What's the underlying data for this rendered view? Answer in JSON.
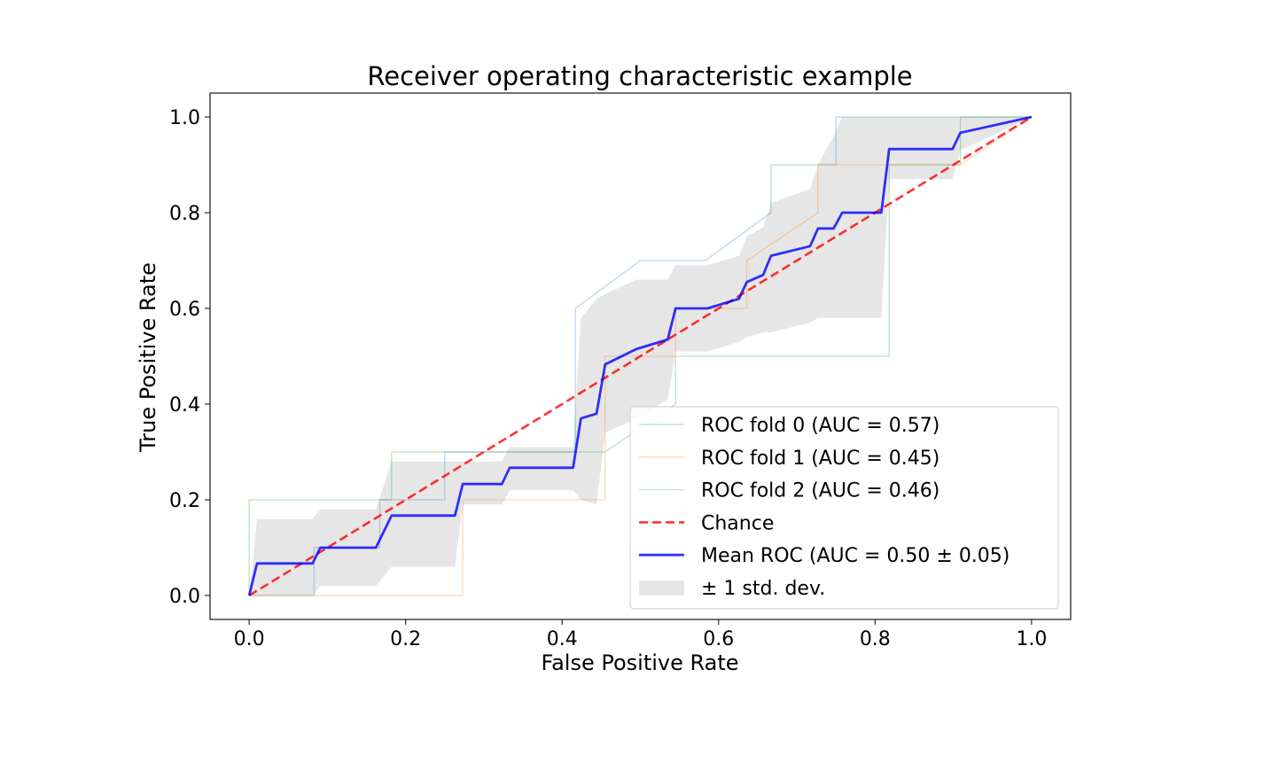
{
  "chart_data": {
    "type": "line",
    "title": "Receiver operating characteristic example",
    "xlabel": "False Positive Rate",
    "ylabel": "True Positive Rate",
    "xlim": [
      -0.05,
      1.05
    ],
    "ylim": [
      -0.05,
      1.05
    ],
    "xticks": [
      0.0,
      0.2,
      0.4,
      0.6,
      0.8,
      1.0
    ],
    "xtick_labels": [
      "0.0",
      "0.2",
      "0.4",
      "0.6",
      "0.8",
      "1.0"
    ],
    "yticks": [
      0.0,
      0.2,
      0.4,
      0.6,
      0.8,
      1.0
    ],
    "ytick_labels": [
      "0.0",
      "0.2",
      "0.4",
      "0.6",
      "0.8",
      "1.0"
    ],
    "grid": false,
    "legend": "lower right",
    "series": [
      {
        "name": "ROC fold 0 (AUC = 0.57)",
        "color": "#1f77b4",
        "x": [
          0.0,
          0.0,
          0.083,
          0.083,
          0.167,
          0.167,
          0.25,
          0.25,
          0.333,
          0.333,
          0.417,
          0.417,
          0.5,
          0.583,
          0.667,
          0.667,
          0.75,
          0.75,
          1.0
        ],
        "y": [
          0.0,
          0.0,
          0.0,
          0.1,
          0.1,
          0.2,
          0.2,
          0.3,
          0.3,
          0.3,
          0.3,
          0.6,
          0.7,
          0.7,
          0.8,
          0.9,
          0.9,
          1.0,
          1.0
        ]
      },
      {
        "name": "ROC fold 1 (AUC = 0.45)",
        "color": "#ff7f0e",
        "x": [
          0.0,
          0.273,
          0.273,
          0.455,
          0.455,
          0.545,
          0.545,
          0.636,
          0.636,
          0.727,
          0.727,
          0.909,
          1.0
        ],
        "y": [
          0.0,
          0.0,
          0.2,
          0.2,
          0.5,
          0.5,
          0.6,
          0.6,
          0.7,
          0.8,
          0.9,
          0.9,
          1.0
        ]
      },
      {
        "name": "ROC fold 2 (AUC = 0.46)",
        "color": "#2ca02c",
        "x": [
          0.0,
          0.0,
          0.182,
          0.182,
          0.455,
          0.545,
          0.545,
          0.818,
          0.818,
          0.909,
          0.909,
          1.0
        ],
        "y": [
          0.0,
          0.2,
          0.2,
          0.3,
          0.3,
          0.4,
          0.5,
          0.5,
          0.9,
          0.9,
          1.0,
          1.0
        ]
      },
      {
        "name": "Chance",
        "color": "#ff0000",
        "dashed": true,
        "x": [
          0.0,
          1.0
        ],
        "y": [
          0.0,
          1.0
        ]
      },
      {
        "name": "Mean ROC (AUC = 0.50 ± 0.05)",
        "color": "#0000ff",
        "x": [
          0.0,
          0.01,
          0.081,
          0.091,
          0.162,
          0.182,
          0.263,
          0.273,
          0.323,
          0.333,
          0.414,
          0.424,
          0.444,
          0.455,
          0.495,
          0.515,
          0.535,
          0.545,
          0.586,
          0.626,
          0.636,
          0.657,
          0.667,
          0.717,
          0.727,
          0.747,
          0.758,
          0.808,
          0.818,
          0.899,
          0.909,
          1.0
        ],
        "y": [
          0.0,
          0.067,
          0.067,
          0.1,
          0.1,
          0.167,
          0.167,
          0.233,
          0.233,
          0.267,
          0.267,
          0.37,
          0.38,
          0.483,
          0.515,
          0.525,
          0.535,
          0.6,
          0.6,
          0.62,
          0.655,
          0.67,
          0.71,
          0.73,
          0.767,
          0.767,
          0.8,
          0.8,
          0.933,
          0.933,
          0.967,
          1.0
        ]
      },
      {
        "name": "± 1 std. dev.",
        "color": "#808080",
        "band": true,
        "x": [
          0.0,
          0.01,
          0.081,
          0.091,
          0.162,
          0.182,
          0.263,
          0.273,
          0.323,
          0.333,
          0.414,
          0.424,
          0.444,
          0.455,
          0.495,
          0.515,
          0.535,
          0.545,
          0.586,
          0.626,
          0.636,
          0.657,
          0.667,
          0.717,
          0.727,
          0.747,
          0.758,
          0.808,
          0.818,
          0.899,
          0.909,
          1.0
        ],
        "upper": [
          0.0,
          0.16,
          0.16,
          0.18,
          0.18,
          0.28,
          0.28,
          0.28,
          0.28,
          0.31,
          0.31,
          0.58,
          0.62,
          0.63,
          0.66,
          0.66,
          0.66,
          0.69,
          0.69,
          0.71,
          0.75,
          0.77,
          0.82,
          0.85,
          0.9,
          0.96,
          1.0,
          1.0,
          1.0,
          1.0,
          1.0,
          1.0
        ],
        "lower": [
          0.0,
          0.0,
          0.0,
          0.02,
          0.02,
          0.06,
          0.06,
          0.19,
          0.19,
          0.22,
          0.22,
          0.2,
          0.19,
          0.34,
          0.37,
          0.39,
          0.41,
          0.51,
          0.51,
          0.53,
          0.54,
          0.55,
          0.55,
          0.57,
          0.58,
          0.58,
          0.58,
          0.58,
          0.87,
          0.87,
          0.93,
          1.0
        ]
      }
    ]
  }
}
